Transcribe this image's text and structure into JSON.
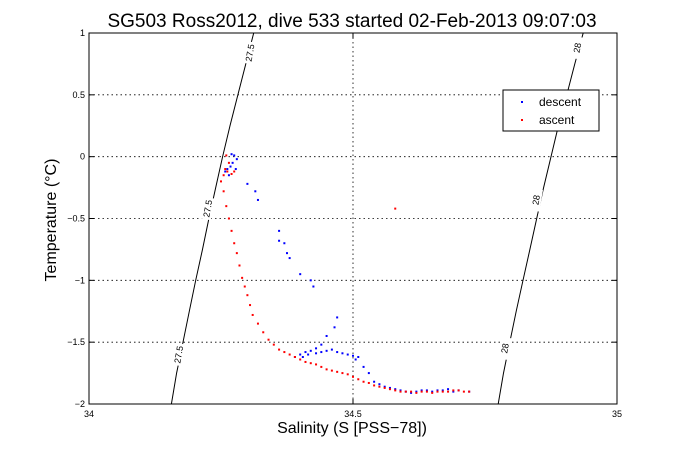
{
  "chart_data": {
    "type": "scatter",
    "title": "SG503 Ross2012, dive 533 started 02-Feb-2013 09:07:03",
    "xlabel": "Salinity (S [PSS−78])",
    "ylabel": "Temperature (°C)",
    "xlim": [
      34,
      35
    ],
    "ylim": [
      -2,
      1
    ],
    "xticks": [
      34,
      34.5,
      35
    ],
    "xtick_labels": [
      "34",
      "34.5",
      "35"
    ],
    "yticks": [
      -2,
      -1.5,
      -1,
      -0.5,
      0,
      0.5,
      1
    ],
    "ytick_labels": [
      "−2",
      "−1.5",
      "−1",
      "−0.5",
      "0",
      "0.5",
      "1"
    ],
    "grid": true,
    "legend_position": "top-right",
    "contours": [
      {
        "label": "27.5",
        "points": [
          [
            34.156,
            -2.0
          ],
          [
            34.166,
            -1.75
          ],
          [
            34.178,
            -1.5
          ],
          [
            34.19,
            -1.25
          ],
          [
            34.202,
            -1.0
          ],
          [
            34.215,
            -0.75
          ],
          [
            34.227,
            -0.5
          ],
          [
            34.24,
            -0.25
          ],
          [
            34.253,
            0.0
          ],
          [
            34.267,
            0.25
          ],
          [
            34.282,
            0.5
          ],
          [
            34.297,
            0.75
          ],
          [
            34.312,
            1.0
          ]
        ],
        "label_at": [
          [
            34.17,
            -1.6
          ],
          [
            34.225,
            -0.42
          ],
          [
            34.305,
            0.84
          ]
        ]
      },
      {
        "label": "28",
        "points": [
          [
            34.775,
            -2.0
          ],
          [
            34.785,
            -1.75
          ],
          [
            34.797,
            -1.5
          ],
          [
            34.809,
            -1.25
          ],
          [
            34.822,
            -1.0
          ],
          [
            34.835,
            -0.75
          ],
          [
            34.848,
            -0.5
          ],
          [
            34.861,
            -0.25
          ],
          [
            34.875,
            0.0
          ],
          [
            34.889,
            0.25
          ],
          [
            34.905,
            0.5
          ],
          [
            34.92,
            0.75
          ],
          [
            34.936,
            1.0
          ]
        ],
        "label_at": [
          [
            34.788,
            -1.55
          ],
          [
            34.847,
            -0.35
          ],
          [
            34.925,
            0.88
          ]
        ]
      }
    ],
    "series": [
      {
        "name": "descent",
        "color": "#0000ff",
        "points": [
          [
            34.27,
            0.02
          ],
          [
            34.275,
            0.01
          ],
          [
            34.28,
            -0.02
          ],
          [
            34.272,
            -0.05
          ],
          [
            34.268,
            -0.08
          ],
          [
            34.262,
            -0.1
          ],
          [
            34.258,
            -0.12
          ],
          [
            34.278,
            -0.1
          ],
          [
            34.265,
            -0.15
          ],
          [
            34.3,
            -0.22
          ],
          [
            34.315,
            -0.28
          ],
          [
            34.32,
            -0.35
          ],
          [
            34.36,
            -0.6
          ],
          [
            34.37,
            -0.7
          ],
          [
            34.375,
            -0.78
          ],
          [
            34.38,
            -0.82
          ],
          [
            34.36,
            -0.68
          ],
          [
            34.4,
            -0.95
          ],
          [
            34.42,
            -1.0
          ],
          [
            34.425,
            -1.05
          ],
          [
            34.47,
            -1.3
          ],
          [
            34.465,
            -1.38
          ],
          [
            34.45,
            -1.45
          ],
          [
            34.44,
            -1.52
          ],
          [
            34.43,
            -1.55
          ],
          [
            34.42,
            -1.57
          ],
          [
            34.41,
            -1.58
          ],
          [
            34.4,
            -1.6
          ],
          [
            34.39,
            -1.62
          ],
          [
            34.405,
            -1.62
          ],
          [
            34.415,
            -1.6
          ],
          [
            34.43,
            -1.59
          ],
          [
            34.44,
            -1.58
          ],
          [
            34.45,
            -1.57
          ],
          [
            34.46,
            -1.56
          ],
          [
            34.47,
            -1.58
          ],
          [
            34.48,
            -1.59
          ],
          [
            34.49,
            -1.6
          ],
          [
            34.5,
            -1.61
          ],
          [
            34.51,
            -1.62
          ],
          [
            34.505,
            -1.64
          ],
          [
            34.52,
            -1.7
          ],
          [
            34.53,
            -1.75
          ],
          [
            34.54,
            -1.82
          ],
          [
            34.55,
            -1.84
          ],
          [
            34.56,
            -1.86
          ],
          [
            34.57,
            -1.87
          ],
          [
            34.58,
            -1.88
          ],
          [
            34.59,
            -1.89
          ],
          [
            34.6,
            -1.9
          ],
          [
            34.61,
            -1.91
          ],
          [
            34.62,
            -1.9
          ],
          [
            34.63,
            -1.89
          ],
          [
            34.64,
            -1.89
          ],
          [
            34.65,
            -1.9
          ],
          [
            34.66,
            -1.89
          ],
          [
            34.67,
            -1.89
          ],
          [
            34.68,
            -1.88
          ],
          [
            34.69,
            -1.9
          ],
          [
            34.7,
            -1.89
          ],
          [
            34.72,
            -1.9
          ]
        ]
      },
      {
        "name": "ascent",
        "color": "#ff0000",
        "points": [
          [
            34.26,
            0.01
          ],
          [
            34.265,
            -0.05
          ],
          [
            34.258,
            -0.1
          ],
          [
            34.262,
            -0.12
          ],
          [
            34.255,
            -0.15
          ],
          [
            34.27,
            -0.14
          ],
          [
            34.275,
            -0.12
          ],
          [
            34.25,
            -0.2
          ],
          [
            34.255,
            -0.28
          ],
          [
            34.26,
            -0.4
          ],
          [
            34.265,
            -0.5
          ],
          [
            34.27,
            -0.6
          ],
          [
            34.275,
            -0.7
          ],
          [
            34.28,
            -0.78
          ],
          [
            34.285,
            -0.88
          ],
          [
            34.29,
            -0.98
          ],
          [
            34.295,
            -1.05
          ],
          [
            34.3,
            -1.12
          ],
          [
            34.305,
            -1.2
          ],
          [
            34.31,
            -1.28
          ],
          [
            34.32,
            -1.35
          ],
          [
            34.33,
            -1.42
          ],
          [
            34.34,
            -1.48
          ],
          [
            34.35,
            -1.52
          ],
          [
            34.36,
            -1.56
          ],
          [
            34.37,
            -1.58
          ],
          [
            34.38,
            -1.6
          ],
          [
            34.39,
            -1.62
          ],
          [
            34.4,
            -1.64
          ],
          [
            34.41,
            -1.66
          ],
          [
            34.42,
            -1.67
          ],
          [
            34.43,
            -1.68
          ],
          [
            34.44,
            -1.7
          ],
          [
            34.45,
            -1.72
          ],
          [
            34.46,
            -1.73
          ],
          [
            34.47,
            -1.74
          ],
          [
            34.48,
            -1.75
          ],
          [
            34.49,
            -1.76
          ],
          [
            34.5,
            -1.78
          ],
          [
            34.51,
            -1.8
          ],
          [
            34.52,
            -1.82
          ],
          [
            34.53,
            -1.83
          ],
          [
            34.54,
            -1.85
          ],
          [
            34.55,
            -1.86
          ],
          [
            34.56,
            -1.87
          ],
          [
            34.57,
            -1.88
          ],
          [
            34.58,
            -1.89
          ],
          [
            34.59,
            -1.9
          ],
          [
            34.6,
            -1.9
          ],
          [
            34.61,
            -1.9
          ],
          [
            34.62,
            -1.91
          ],
          [
            34.63,
            -1.9
          ],
          [
            34.64,
            -1.9
          ],
          [
            34.65,
            -1.91
          ],
          [
            34.66,
            -1.9
          ],
          [
            34.67,
            -1.9
          ],
          [
            34.68,
            -1.9
          ],
          [
            34.69,
            -1.89
          ],
          [
            34.7,
            -1.89
          ],
          [
            34.71,
            -1.9
          ],
          [
            34.72,
            -1.9
          ],
          [
            34.58,
            -0.42
          ]
        ]
      }
    ]
  }
}
